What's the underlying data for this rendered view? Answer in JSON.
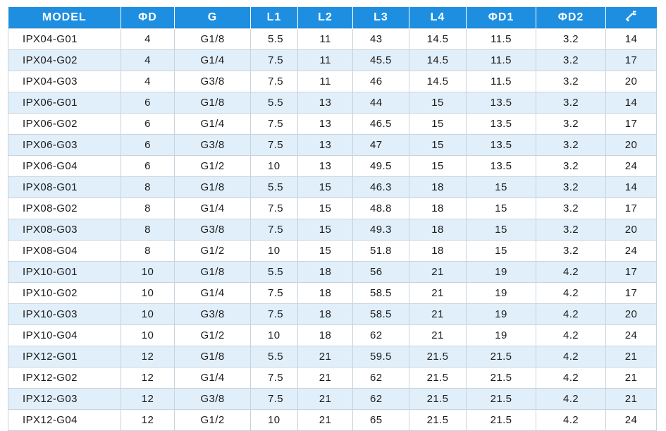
{
  "table": {
    "columns": [
      {
        "key": "model",
        "label": "MODEL"
      },
      {
        "key": "d",
        "label": "ΦD"
      },
      {
        "key": "g",
        "label": "G"
      },
      {
        "key": "l1",
        "label": "L1"
      },
      {
        "key": "l2",
        "label": "L2"
      },
      {
        "key": "l3",
        "label": "L3"
      },
      {
        "key": "l4",
        "label": "L4"
      },
      {
        "key": "d1",
        "label": "ΦD1"
      },
      {
        "key": "d2",
        "label": "ΦD2"
      },
      {
        "key": "wrench",
        "label": "",
        "icon": "wrench-icon"
      }
    ],
    "colors": {
      "header_bg": "#1e8fe0",
      "header_text": "#ffffff",
      "stripe": "#e1effb",
      "border": "#c9d3dc"
    },
    "rows": [
      [
        "IPX04-G01",
        "4",
        "G1/8",
        "5.5",
        "11",
        "43",
        "14.5",
        "11.5",
        "3.2",
        "14"
      ],
      [
        "IPX04-G02",
        "4",
        "G1/4",
        "7.5",
        "11",
        "45.5",
        "14.5",
        "11.5",
        "3.2",
        "17"
      ],
      [
        "IPX04-G03",
        "4",
        "G3/8",
        "7.5",
        "11",
        "46",
        "14.5",
        "11.5",
        "3.2",
        "20"
      ],
      [
        "IPX06-G01",
        "6",
        "G1/8",
        "5.5",
        "13",
        "44",
        "15",
        "13.5",
        "3.2",
        "14"
      ],
      [
        "IPX06-G02",
        "6",
        "G1/4",
        "7.5",
        "13",
        "46.5",
        "15",
        "13.5",
        "3.2",
        "17"
      ],
      [
        "IPX06-G03",
        "6",
        "G3/8",
        "7.5",
        "13",
        "47",
        "15",
        "13.5",
        "3.2",
        "20"
      ],
      [
        "IPX06-G04",
        "6",
        "G1/2",
        "10",
        "13",
        "49.5",
        "15",
        "13.5",
        "3.2",
        "24"
      ],
      [
        "IPX08-G01",
        "8",
        "G1/8",
        "5.5",
        "15",
        "46.3",
        "18",
        "15",
        "3.2",
        "14"
      ],
      [
        "IPX08-G02",
        "8",
        "G1/4",
        "7.5",
        "15",
        "48.8",
        "18",
        "15",
        "3.2",
        "17"
      ],
      [
        "IPX08-G03",
        "8",
        "G3/8",
        "7.5",
        "15",
        "49.3",
        "18",
        "15",
        "3.2",
        "20"
      ],
      [
        "IPX08-G04",
        "8",
        "G1/2",
        "10",
        "15",
        "51.8",
        "18",
        "15",
        "3.2",
        "24"
      ],
      [
        "IPX10-G01",
        "10",
        "G1/8",
        "5.5",
        "18",
        "56",
        "21",
        "19",
        "4.2",
        "17"
      ],
      [
        "IPX10-G02",
        "10",
        "G1/4",
        "7.5",
        "18",
        "58.5",
        "21",
        "19",
        "4.2",
        "17"
      ],
      [
        "IPX10-G03",
        "10",
        "G3/8",
        "7.5",
        "18",
        "58.5",
        "21",
        "19",
        "4.2",
        "20"
      ],
      [
        "IPX10-G04",
        "10",
        "G1/2",
        "10",
        "18",
        "62",
        "21",
        "19",
        "4.2",
        "24"
      ],
      [
        "IPX12-G01",
        "12",
        "G1/8",
        "5.5",
        "21",
        "59.5",
        "21.5",
        "21.5",
        "4.2",
        "21"
      ],
      [
        "IPX12-G02",
        "12",
        "G1/4",
        "7.5",
        "21",
        "62",
        "21.5",
        "21.5",
        "4.2",
        "21"
      ],
      [
        "IPX12-G03",
        "12",
        "G3/8",
        "7.5",
        "21",
        "62",
        "21.5",
        "21.5",
        "4.2",
        "21"
      ],
      [
        "IPX12-G04",
        "12",
        "G1/2",
        "10",
        "21",
        "65",
        "21.5",
        "21.5",
        "4.2",
        "24"
      ]
    ]
  }
}
